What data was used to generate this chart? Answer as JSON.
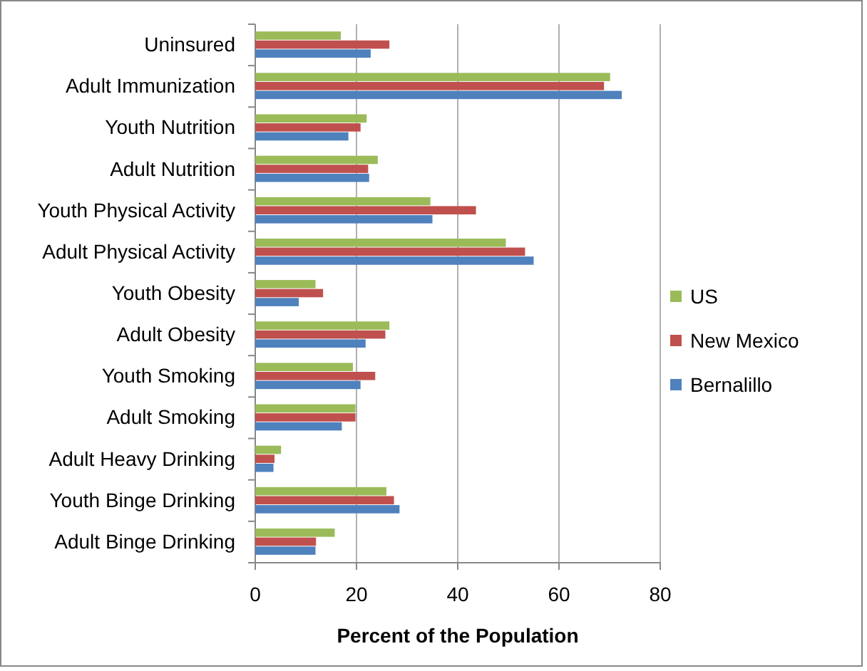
{
  "chart_data": {
    "type": "bar",
    "orientation": "horizontal",
    "xlabel": "Percent of the Population",
    "categories": [
      "Uninsured",
      "Adult Immunization",
      "Youth Nutrition",
      "Adult Nutrition",
      "Youth Physical Activity",
      "Adult Physical Activity",
      "Youth Obesity",
      "Adult Obesity",
      "Youth Smoking",
      "Adult Smoking",
      "Adult Heavy Drinking",
      "Youth Binge Drinking",
      "Adult Binge Drinking"
    ],
    "series": [
      {
        "name": "Bernalillo",
        "color": "#4f81bd",
        "values": [
          22.8,
          72.4,
          18.4,
          22.5,
          35.0,
          55.0,
          8.6,
          21.8,
          20.8,
          17.1,
          3.6,
          28.5,
          11.9
        ]
      },
      {
        "name": "New Mexico",
        "color": "#c0504d",
        "values": [
          26.5,
          68.9,
          20.8,
          22.3,
          43.6,
          53.3,
          13.4,
          25.7,
          23.7,
          19.8,
          3.8,
          27.4,
          12.0
        ]
      },
      {
        "name": "US",
        "color": "#9bbb59",
        "values": [
          16.9,
          70.1,
          22.0,
          24.2,
          34.6,
          49.5,
          11.9,
          26.5,
          19.3,
          19.8,
          5.1,
          25.9,
          15.7
        ]
      }
    ],
    "xlim": [
      0,
      80
    ],
    "xticks": [
      0,
      20,
      40,
      60,
      80
    ],
    "grid": "x",
    "legend": "right"
  }
}
